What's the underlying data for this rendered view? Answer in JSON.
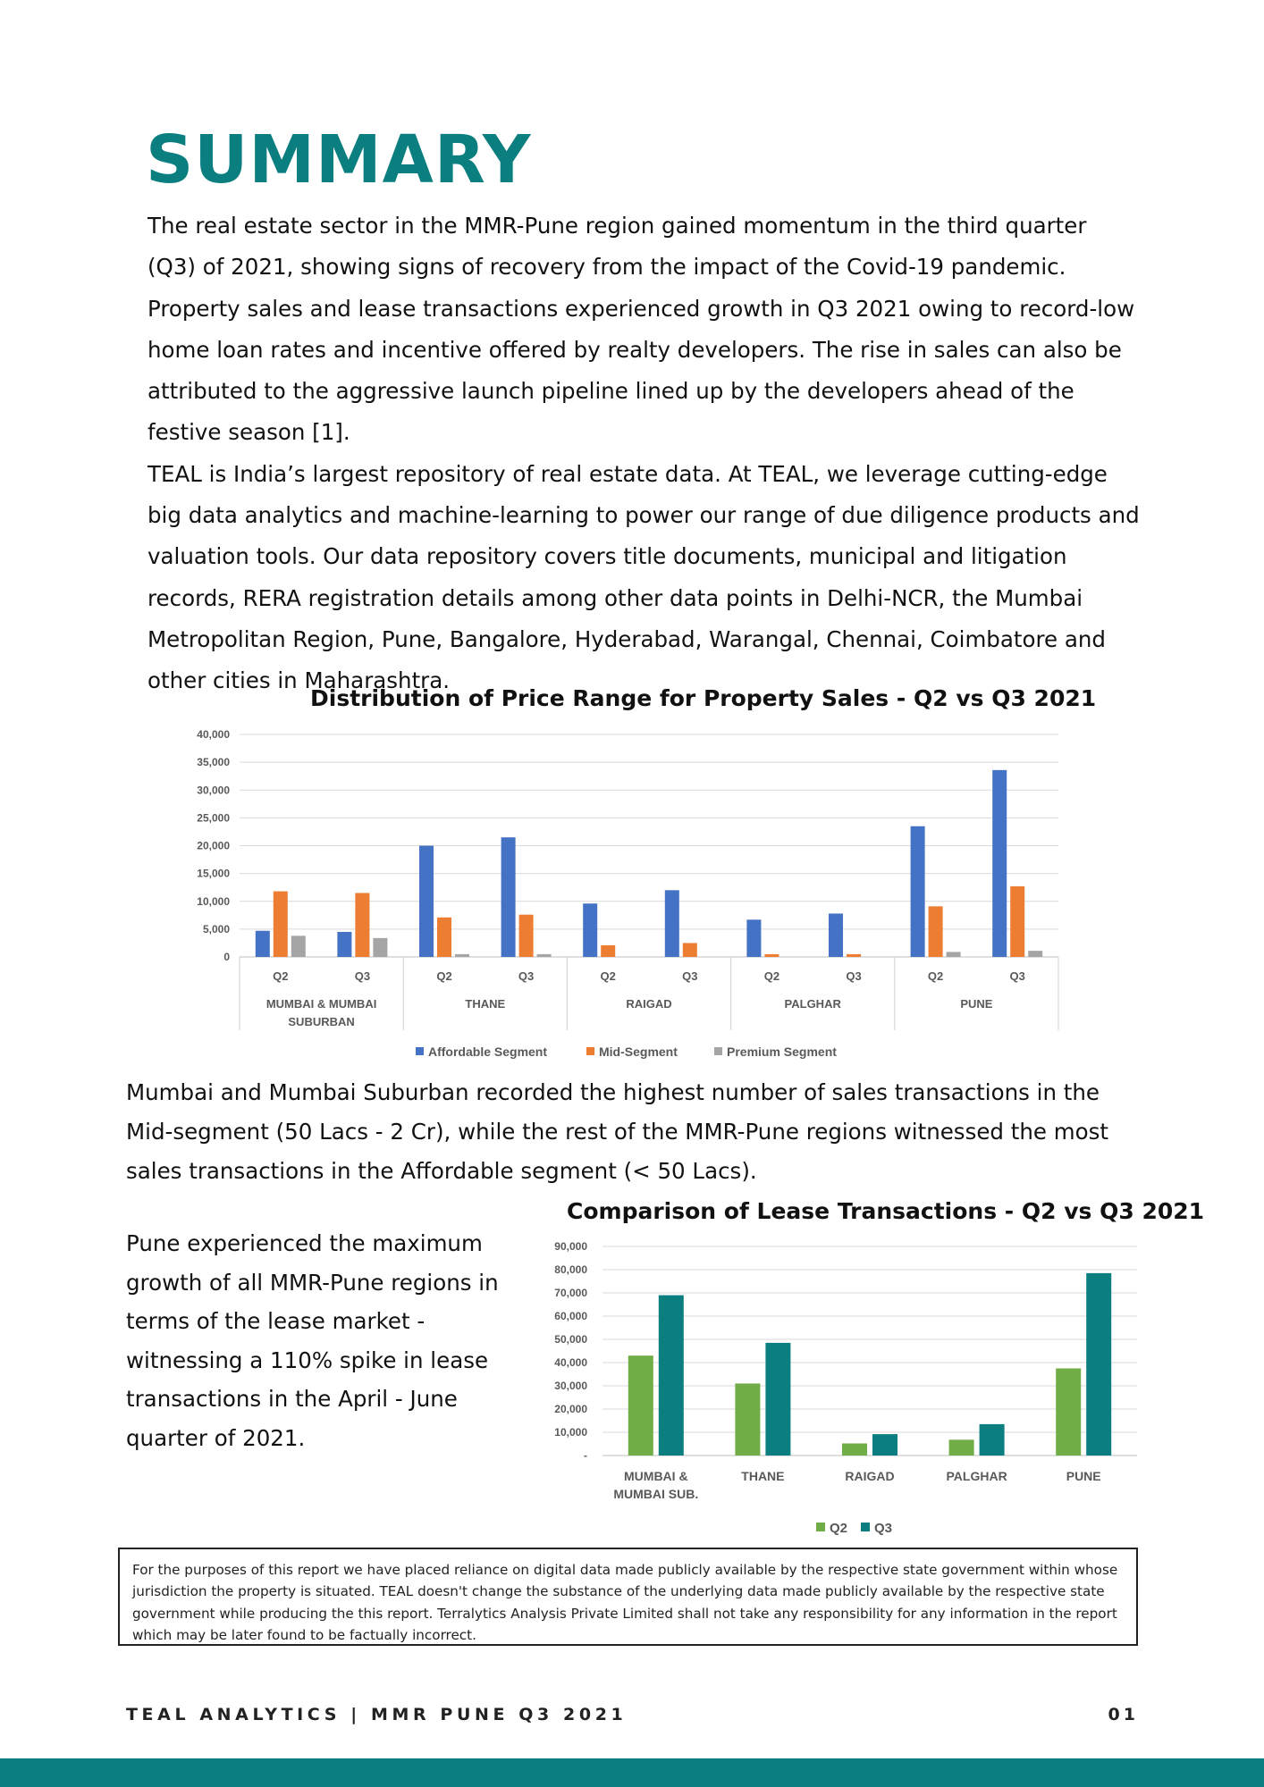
{
  "page": {
    "title": "SUMMARY",
    "intro_paragraph_1": "The real estate sector in the MMR-Pune region gained momentum in the third quarter (Q3) of 2021, showing signs of recovery from the impact of the Covid-19 pandemic. Property sales and lease transactions experienced growth in Q3 2021 owing to record-low home loan rates and incentive offered by realty developers. The rise in sales can also be attributed to the aggressive launch pipeline lined up by the developers ahead of the festive season [1].",
    "intro_paragraph_2": "TEAL is India’s largest repository of real estate data. At TEAL, we leverage cutting-edge big data analytics and machine-learning to power our range of due diligence products and valuation tools. Our data repository covers title documents, municipal and litigation records, RERA registration details among other data points in Delhi-NCR, the Mumbai Metropolitan Region, Pune, Bangalore, Hyderabad, Warangal, Chennai, Coimbatore and other cities in Maharashtra.",
    "sales_paragraph": " Mumbai and Mumbai Suburban recorded the highest number of sales transactions in the Mid-segment (50 Lacs - 2 Cr), while the rest of the MMR-Pune regions witnessed the most sales transactions in the Affordable segment (< 50 Lacs).",
    "lease_paragraph": "Pune experienced the maximum growth of all MMR-Pune regions in terms of the lease market - witnessing a 110% spike in lease transactions in the April - June quarter of 2021.",
    "disclaimer": "For the purposes of this report we have placed reliance on digital data made publicly available by the respective state government within whose jurisdiction the property is situated. TEAL doesn't change the substance of the underlying data made publicly available by the respective state government while producing the this report. Terralytics Analysis Private Limited shall not take any responsibility for any information in the report which may be later found to be factually incorrect.",
    "footer_left": "TEAL ANALYTICS | MMR PUNE Q3 2021",
    "footer_right": "01"
  },
  "colors": {
    "brand_teal": "#0b7e80",
    "affordable": "#4472c4",
    "mid": "#ed7d31",
    "premium": "#a5a5a5",
    "q2": "#70ad47",
    "q3": "#0b7e80"
  },
  "chart_data": [
    {
      "type": "bar",
      "title": "Distribution of Price Range for Property Sales - Q2 vs Q3  2021",
      "ylim": [
        0,
        40000
      ],
      "yticks": [
        "0",
        "5,000",
        "10,000",
        "15,000",
        "20,000",
        "25,000",
        "30,000",
        "35,000",
        "40,000"
      ],
      "grid": true,
      "legend_position": "bottom",
      "groups": [
        "MUMBAI & MUMBAI SUBURBAN",
        "THANE",
        "RAIGAD",
        "PALGHAR",
        "PUNE"
      ],
      "categories": [
        "Q2",
        "Q3",
        "Q2",
        "Q3",
        "Q2",
        "Q3",
        "Q2",
        "Q3",
        "Q2",
        "Q3"
      ],
      "series": [
        {
          "name": "Affordable Segment",
          "values": [
            4700,
            4500,
            20000,
            21500,
            9600,
            12000,
            6700,
            7800,
            23500,
            33600
          ]
        },
        {
          "name": "Mid-Segment",
          "values": [
            11800,
            11500,
            7100,
            7600,
            2100,
            2500,
            500,
            500,
            9100,
            12700
          ]
        },
        {
          "name": "Premium Segment",
          "values": [
            3800,
            3400,
            500,
            500,
            0,
            0,
            0,
            0,
            900,
            1100
          ]
        }
      ]
    },
    {
      "type": "bar",
      "title": "Comparison of Lease Transactions - Q2 vs Q3  2021",
      "ylim": [
        0,
        90000
      ],
      "yticks": [
        "-",
        "10,000",
        "20,000",
        "30,000",
        "40,000",
        "50,000",
        "60,000",
        "70,000",
        "80,000",
        "90,000"
      ],
      "grid": true,
      "legend_position": "bottom",
      "categories": [
        "MUMBAI & MUMBAI SUB.",
        "THANE",
        "RAIGAD",
        "PALGHAR",
        "PUNE"
      ],
      "series": [
        {
          "name": "Q2",
          "values": [
            43000,
            31000,
            5200,
            6800,
            37500
          ]
        },
        {
          "name": "Q3",
          "values": [
            69000,
            48500,
            9200,
            13500,
            78500
          ]
        }
      ]
    }
  ]
}
